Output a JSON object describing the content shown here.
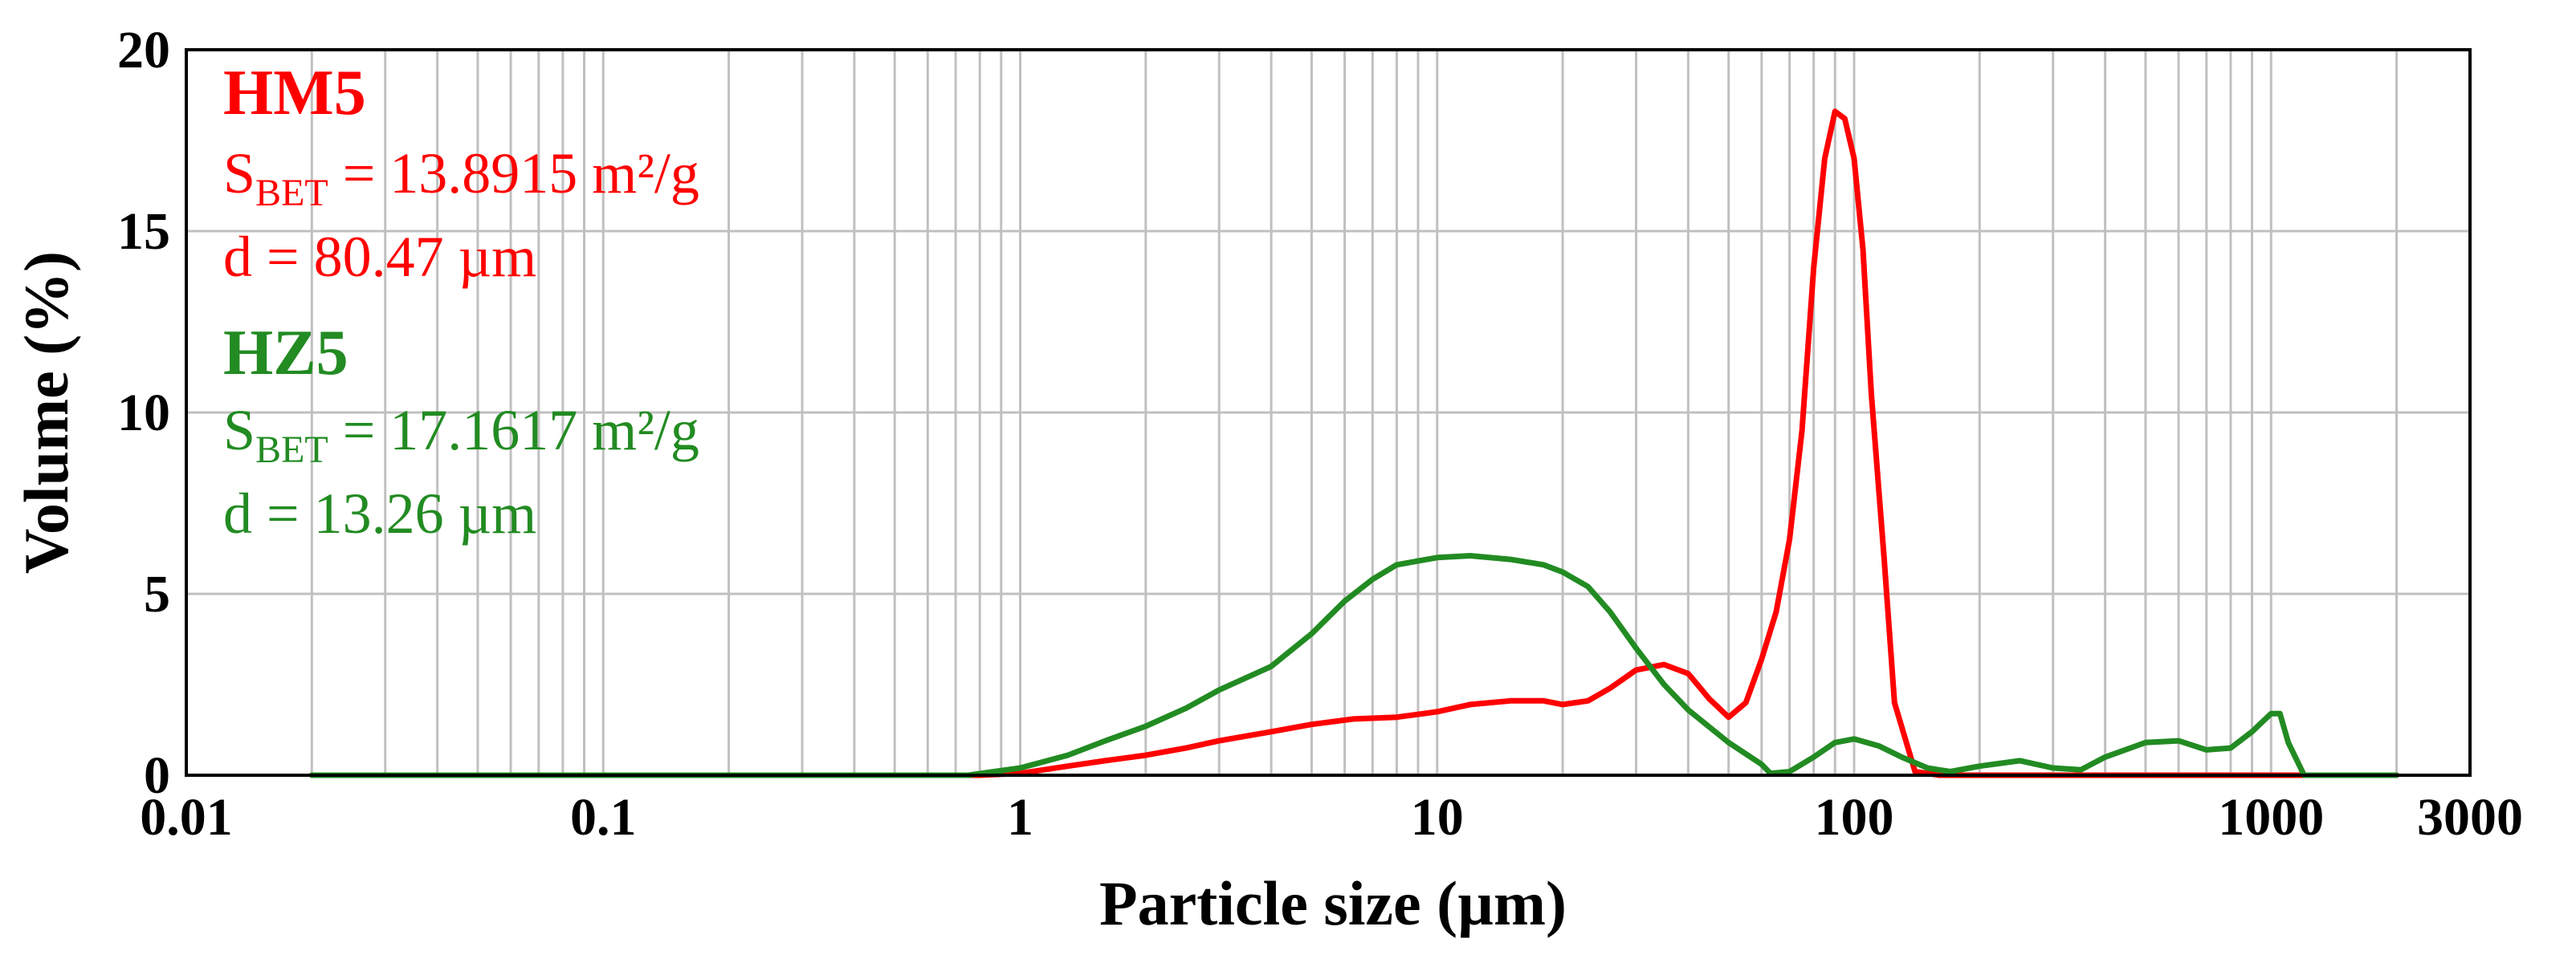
{
  "chart_data": {
    "type": "line",
    "xscale": "log",
    "xlabel": "Particle size (µm)",
    "ylabel": "Volume (%)",
    "xlim": [
      0.01,
      3000
    ],
    "ylim": [
      0,
      20
    ],
    "grid": true,
    "x_ticks": [
      0.01,
      0.1,
      1,
      10,
      100,
      1000,
      3000
    ],
    "x_tick_labels": [
      "0.01",
      "0.1",
      "1",
      "10",
      "100",
      "1000",
      "3000"
    ],
    "y_ticks": [
      0,
      5,
      10,
      15,
      20
    ],
    "y_tick_labels": [
      "0",
      "5",
      "10",
      "15",
      "20"
    ],
    "annotations": {
      "hm5": {
        "name": "HM5",
        "sbet_prefix": "S",
        "sbet_sub": "BET",
        "sbet_value": " = 13.8915 m²/g",
        "d_text": "d = 80.47 µm"
      },
      "hz5": {
        "name": "HZ5",
        "sbet_prefix": "S",
        "sbet_sub": "BET",
        "sbet_value": " = 17.1617 m²/g",
        "d_text": "d = 13.26 µm"
      }
    },
    "series": [
      {
        "name": "HM5",
        "color": "#ff0000",
        "points": [
          [
            0.02,
            0
          ],
          [
            0.8,
            0
          ],
          [
            1.0,
            0.05
          ],
          [
            1.3,
            0.25
          ],
          [
            1.6,
            0.4
          ],
          [
            2.0,
            0.55
          ],
          [
            2.5,
            0.75
          ],
          [
            3.0,
            0.95
          ],
          [
            4.0,
            1.2
          ],
          [
            5.0,
            1.4
          ],
          [
            6.3,
            1.55
          ],
          [
            8.0,
            1.6
          ],
          [
            10,
            1.75
          ],
          [
            12,
            1.95
          ],
          [
            15,
            2.05
          ],
          [
            18,
            2.05
          ],
          [
            20,
            1.95
          ],
          [
            23,
            2.05
          ],
          [
            26,
            2.4
          ],
          [
            30,
            2.9
          ],
          [
            35,
            3.05
          ],
          [
            40,
            2.8
          ],
          [
            45,
            2.1
          ],
          [
            50,
            1.6
          ],
          [
            55,
            2.0
          ],
          [
            60,
            3.2
          ],
          [
            65,
            4.5
          ],
          [
            70,
            6.5
          ],
          [
            75,
            9.5
          ],
          [
            80,
            14.0
          ],
          [
            85,
            17.0
          ],
          [
            90,
            18.3
          ],
          [
            95,
            18.1
          ],
          [
            100,
            17.0
          ],
          [
            105,
            14.5
          ],
          [
            110,
            10.5
          ],
          [
            118,
            6.0
          ],
          [
            125,
            2.0
          ],
          [
            140,
            0.1
          ],
          [
            160,
            0
          ],
          [
            1500,
            0
          ],
          [
            2000,
            0
          ]
        ]
      },
      {
        "name": "HZ5",
        "color": "#228b22",
        "points": [
          [
            0.02,
            0
          ],
          [
            0.75,
            0
          ],
          [
            1.0,
            0.2
          ],
          [
            1.3,
            0.55
          ],
          [
            1.6,
            0.95
          ],
          [
            2.0,
            1.35
          ],
          [
            2.5,
            1.85
          ],
          [
            3.0,
            2.35
          ],
          [
            4.0,
            3.0
          ],
          [
            5.0,
            3.9
          ],
          [
            6.0,
            4.8
          ],
          [
            7.0,
            5.4
          ],
          [
            8.0,
            5.8
          ],
          [
            10,
            6.0
          ],
          [
            12,
            6.05
          ],
          [
            15,
            5.95
          ],
          [
            18,
            5.8
          ],
          [
            20,
            5.6
          ],
          [
            23,
            5.2
          ],
          [
            26,
            4.5
          ],
          [
            30,
            3.5
          ],
          [
            35,
            2.5
          ],
          [
            40,
            1.8
          ],
          [
            50,
            0.9
          ],
          [
            60,
            0.3
          ],
          [
            63,
            0.05
          ],
          [
            70,
            0.1
          ],
          [
            80,
            0.5
          ],
          [
            90,
            0.9
          ],
          [
            100,
            1.0
          ],
          [
            115,
            0.8
          ],
          [
            130,
            0.5
          ],
          [
            150,
            0.2
          ],
          [
            170,
            0.1
          ],
          [
            200,
            0.25
          ],
          [
            250,
            0.4
          ],
          [
            300,
            0.2
          ],
          [
            350,
            0.15
          ],
          [
            400,
            0.5
          ],
          [
            500,
            0.9
          ],
          [
            600,
            0.95
          ],
          [
            700,
            0.7
          ],
          [
            800,
            0.75
          ],
          [
            900,
            1.2
          ],
          [
            1000,
            1.7
          ],
          [
            1050,
            1.7
          ],
          [
            1100,
            0.9
          ],
          [
            1200,
            0
          ],
          [
            1500,
            0
          ],
          [
            2000,
            0
          ]
        ]
      }
    ]
  }
}
